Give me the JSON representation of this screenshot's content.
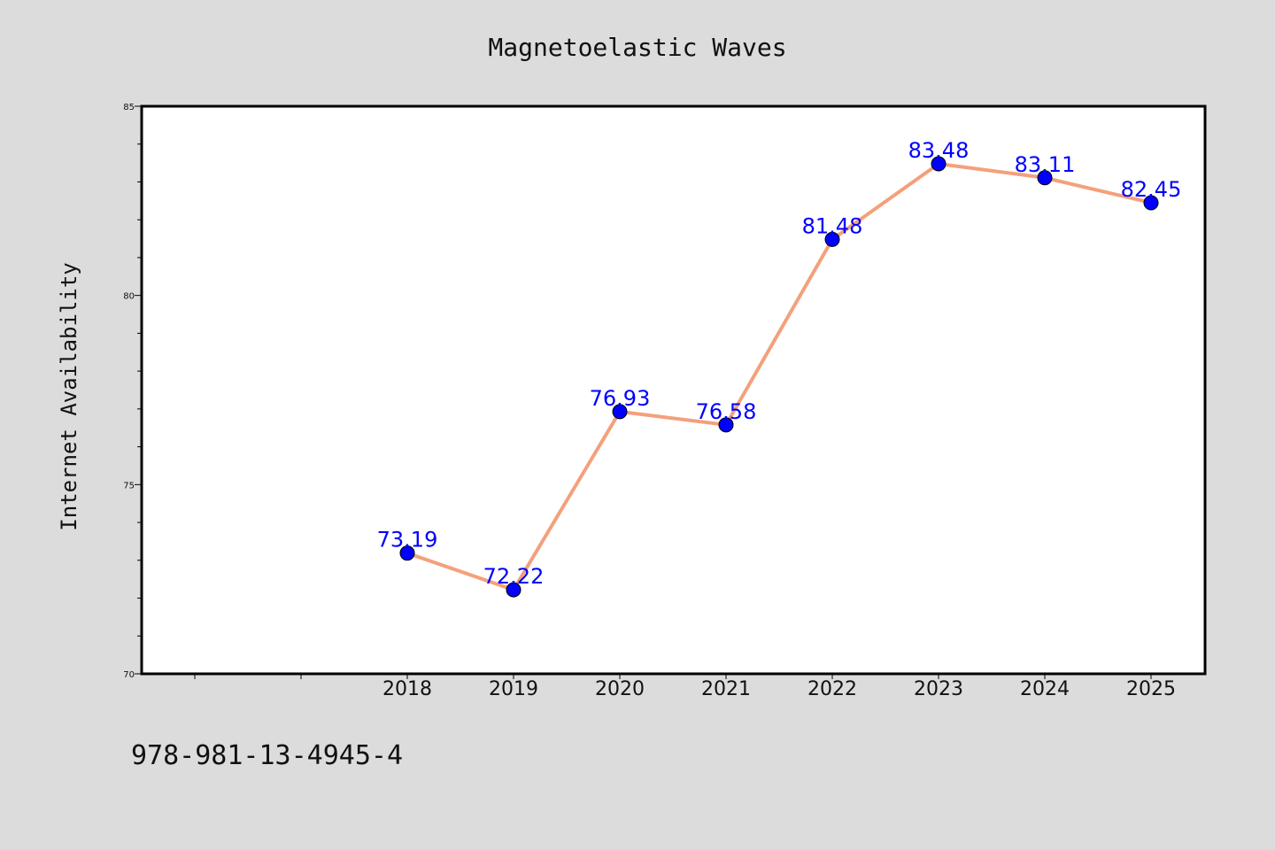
{
  "chart_data": {
    "type": "line",
    "title": "Magnetoelastic Waves",
    "xlabel": "",
    "ylabel": "Internet Availability",
    "categories": [
      "2018",
      "2019",
      "2020",
      "2021",
      "2022",
      "2023",
      "2024",
      "2025"
    ],
    "series": [
      {
        "values": [
          73.19,
          72.22,
          76.93,
          76.58,
          81.48,
          83.48,
          83.11,
          82.45
        ],
        "data_labels": [
          "73.19",
          "72.22",
          "76.93",
          "76.58",
          "81.48",
          "83.48",
          "83.11",
          "82.45"
        ]
      }
    ],
    "ylim": [
      70,
      85
    ],
    "yticks": [
      "70",
      "75",
      "80",
      "85"
    ],
    "grid": false,
    "legend": "none",
    "colors": {
      "line": "#f4a07c",
      "marker": "#0000ff",
      "data_label": "#0000ff",
      "background": "#dcdcdc",
      "plot_area": "#ffffff"
    }
  },
  "footnote": "978-981-13-4945-4"
}
